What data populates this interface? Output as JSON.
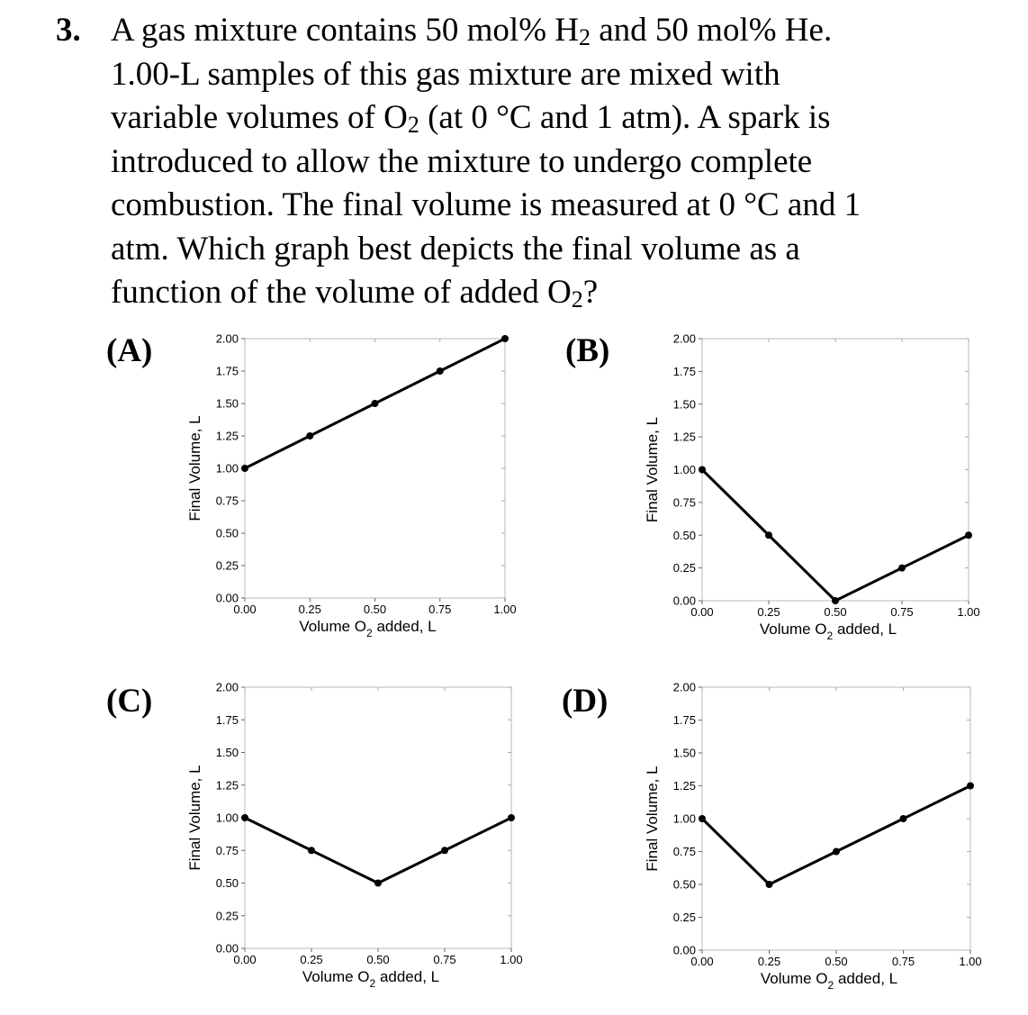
{
  "question": {
    "number": "3.",
    "lines": [
      [
        "A gas mixture contains 50 mol% H",
        {
          "sub": "2"
        },
        " and 50 mol% He."
      ],
      [
        "1.00-L samples of this gas mixture are mixed with"
      ],
      [
        "variable volumes of O",
        {
          "sub": "2"
        },
        " (at 0 °C and 1 atm).  A spark is"
      ],
      [
        "introduced to allow the mixture to undergo complete"
      ],
      [
        "combustion.  The final volume is measured at 0 °C and 1"
      ],
      [
        "atm.  Which graph best depicts the final volume as a"
      ],
      [
        "function of the volume of added O",
        {
          "sub": "2"
        },
        "?"
      ]
    ]
  },
  "axes": {
    "ylabel": "Final Volume, L",
    "xlabel_main": "Volume O",
    "xlabel_sub": "2",
    "xlabel_rest": " added, L",
    "xticks": [
      "0.00",
      "0.25",
      "0.50",
      "0.75",
      "1.00"
    ],
    "yticks": [
      "0.00",
      "0.25",
      "0.50",
      "0.75",
      "1.00",
      "1.25",
      "1.50",
      "1.75",
      "2.00"
    ]
  },
  "chart_data": [
    {
      "type": "line",
      "label": "(A)",
      "xlabel": "Volume O2 added, L",
      "ylabel": "Final Volume, L",
      "xlim": [
        0,
        1
      ],
      "ylim": [
        0,
        2
      ],
      "x": [
        0,
        0.25,
        0.5,
        0.75,
        1.0
      ],
      "y": [
        1.0,
        1.25,
        1.5,
        1.75,
        2.0
      ]
    },
    {
      "type": "line",
      "label": "(B)",
      "xlabel": "Volume O2 added, L",
      "ylabel": "Final Volume, L",
      "xlim": [
        0,
        1
      ],
      "ylim": [
        0,
        2
      ],
      "x": [
        0,
        0.25,
        0.5,
        0.75,
        1.0
      ],
      "y": [
        1.0,
        0.5,
        0.0,
        0.25,
        0.5
      ]
    },
    {
      "type": "line",
      "label": "(C)",
      "xlabel": "Volume O2 added, L",
      "ylabel": "Final Volume, L",
      "xlim": [
        0,
        1
      ],
      "ylim": [
        0,
        2
      ],
      "x": [
        0,
        0.25,
        0.5,
        0.75,
        1.0
      ],
      "y": [
        1.0,
        0.75,
        0.5,
        0.75,
        1.0
      ]
    },
    {
      "type": "line",
      "label": "(D)",
      "xlabel": "Volume O2 added, L",
      "ylabel": "Final Volume, L",
      "xlim": [
        0,
        1
      ],
      "ylim": [
        0,
        2
      ],
      "x": [
        0,
        0.25,
        0.5,
        0.75,
        1.0
      ],
      "y": [
        1.0,
        0.5,
        0.75,
        1.0,
        1.25
      ]
    }
  ]
}
